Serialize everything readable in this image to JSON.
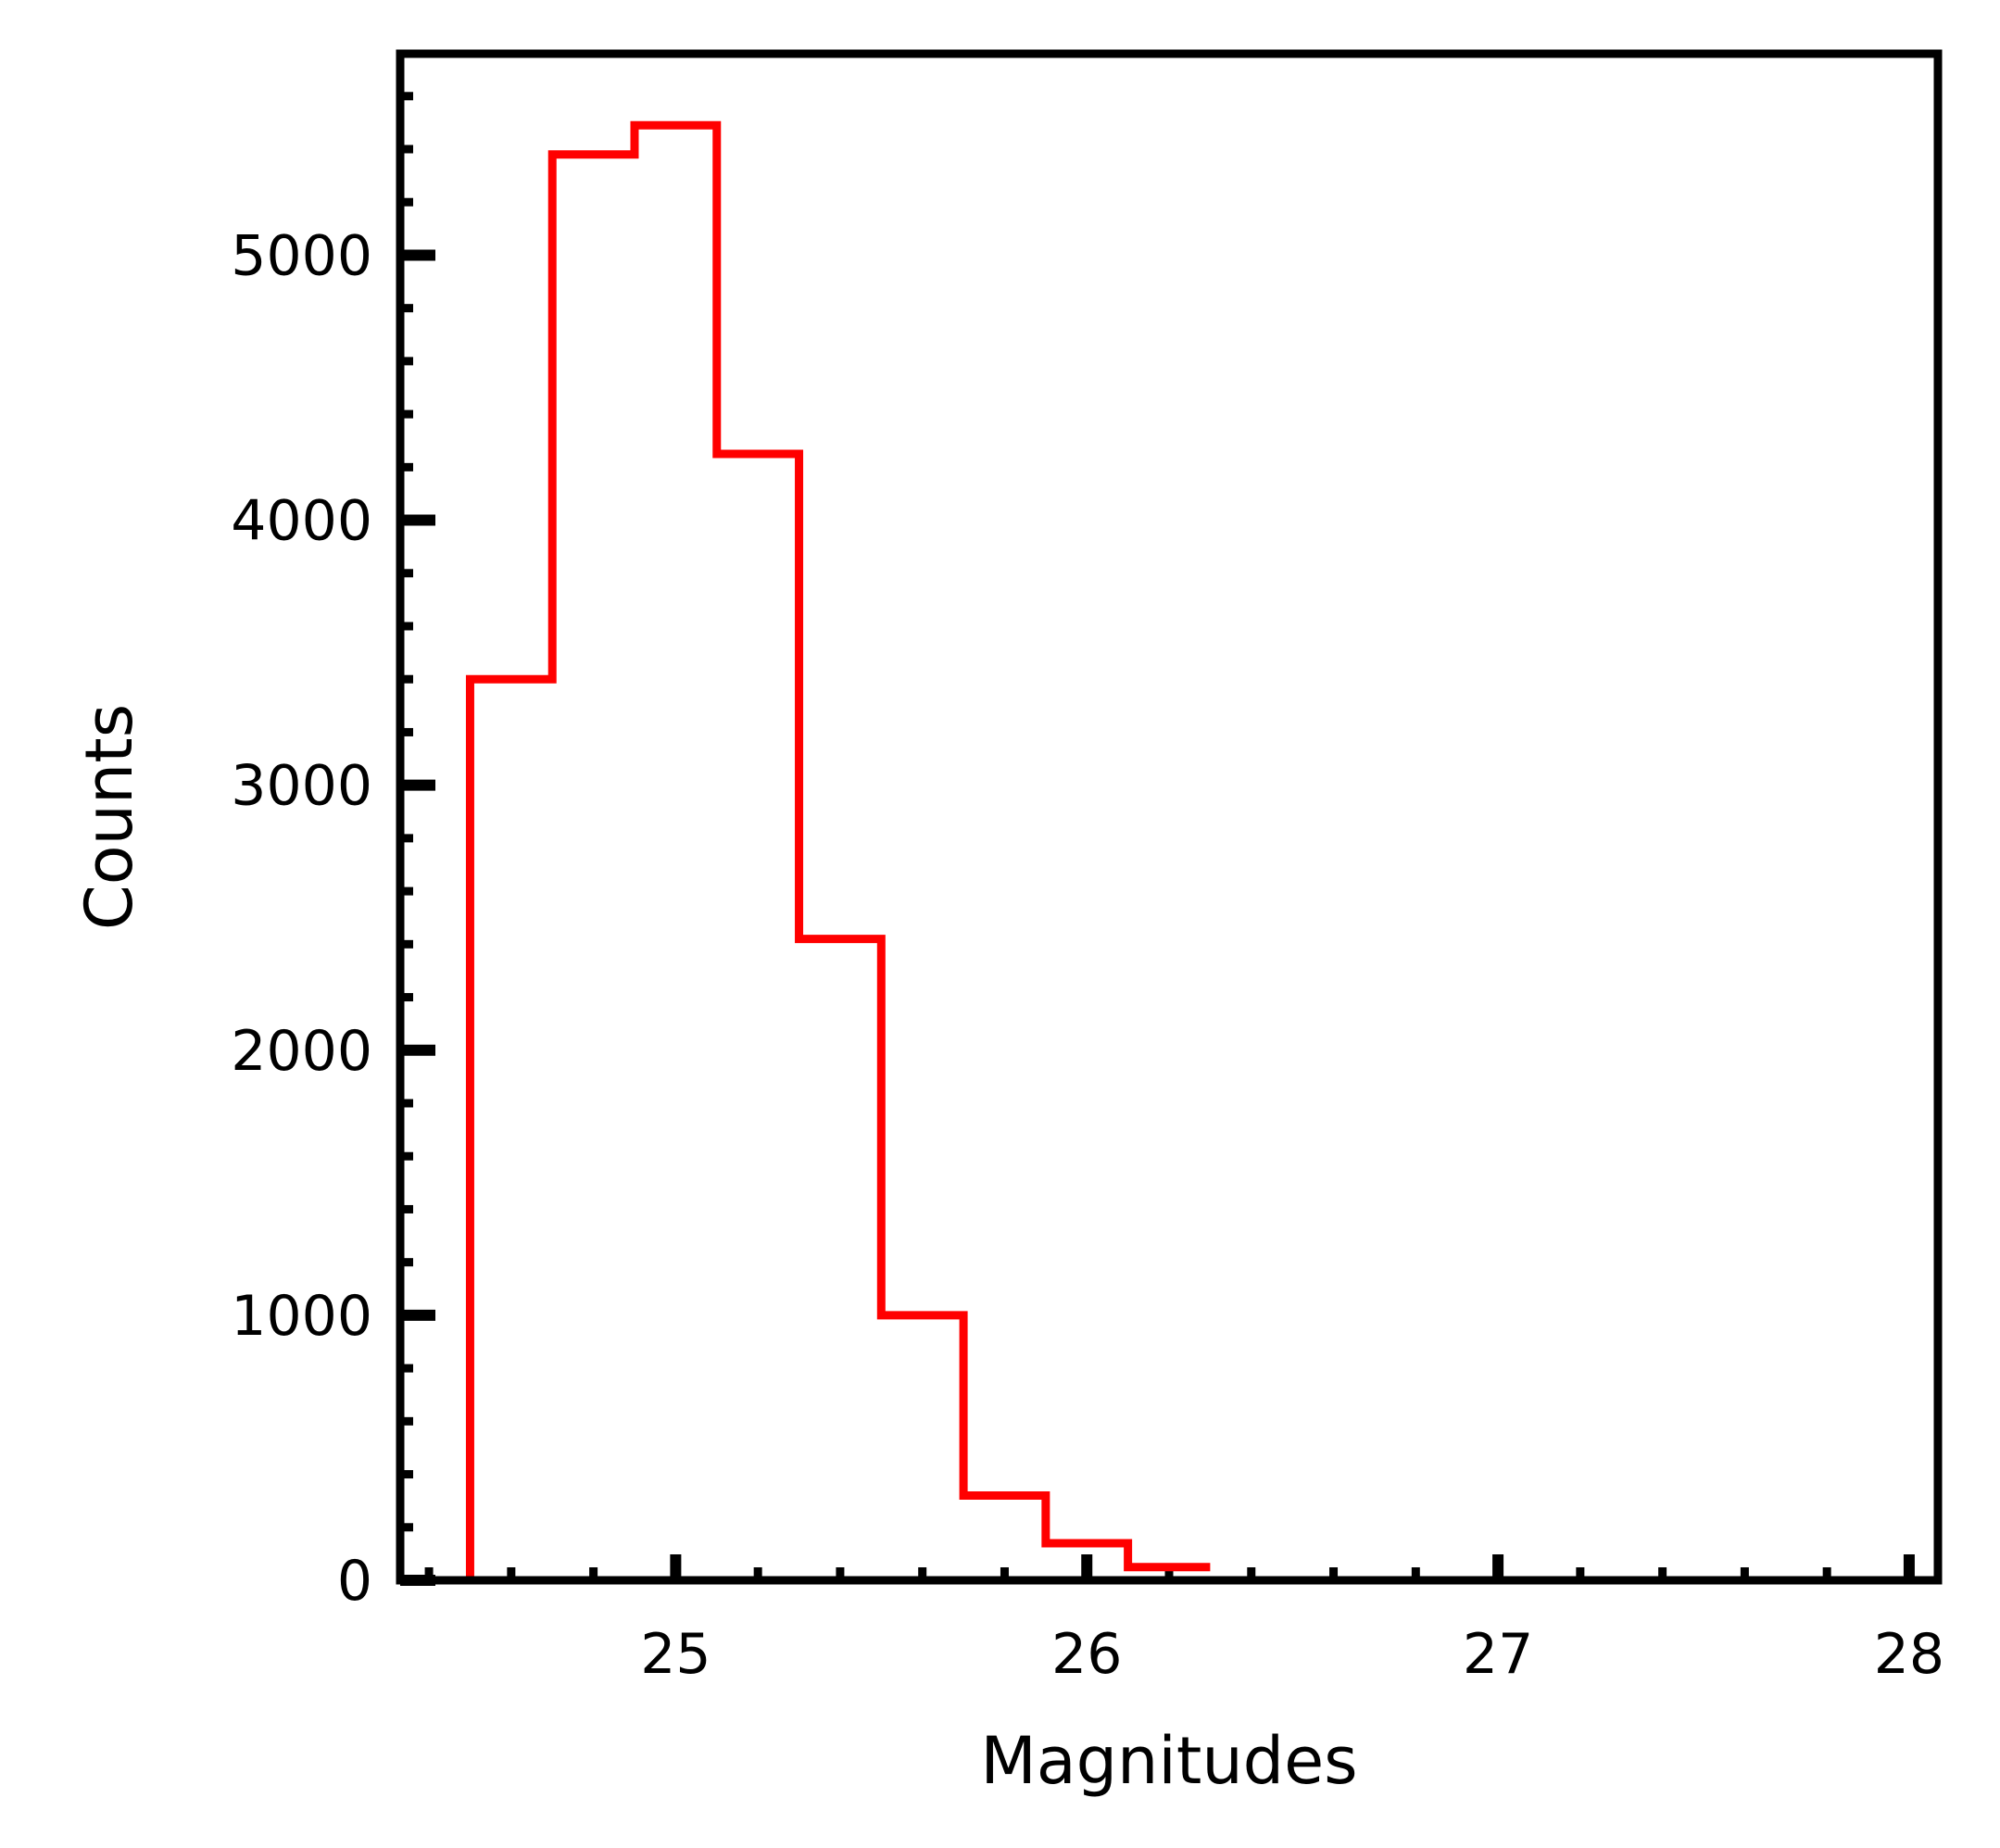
{
  "chart_data": {
    "type": "histogram",
    "title": "",
    "xlabel": "Magnitudes",
    "ylabel": "Counts",
    "xlim": [
      24.33,
      28.07
    ],
    "ylim": [
      0,
      5760
    ],
    "x_ticks": [
      25,
      26,
      27,
      28
    ],
    "x_tick_labels": [
      "25",
      "26",
      "27",
      "28"
    ],
    "y_ticks": [
      0,
      1000,
      2000,
      3000,
      4000,
      5000
    ],
    "y_tick_labels": [
      "0",
      "1000",
      "2000",
      "3000",
      "4000",
      "5000"
    ],
    "x_minor_step": 0.2,
    "y_minor_step": 200,
    "grid": false,
    "series": [
      {
        "color": "#ff0000",
        "bin_edges": [
          24.5,
          24.7,
          24.9,
          25.1,
          25.3,
          25.5,
          25.7,
          25.9,
          26.1,
          26.3
        ],
        "counts": [
          3400,
          5380,
          5490,
          4250,
          2420,
          1000,
          320,
          140,
          50
        ]
      }
    ]
  }
}
